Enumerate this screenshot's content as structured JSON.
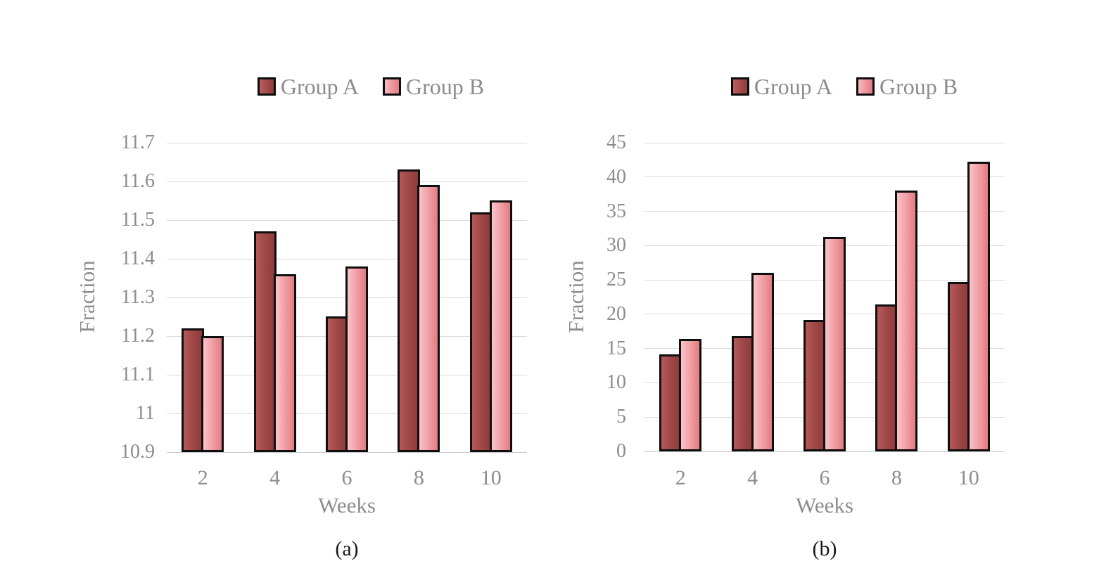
{
  "figure": {
    "background": "#ffffff",
    "legend_labels": [
      "Group A",
      "Group B"
    ],
    "colors": {
      "group_a_fill_light": "#b35959",
      "group_a_fill_dark": "#8f3b3b",
      "group_b_fill_light": "#f8c4c8",
      "group_b_fill_dark": "#e57b82",
      "bar_border": "#0f0f0f",
      "axis_text": "#8c8c8c",
      "gridline": "#dadada",
      "caption_text": "#1a1a1a"
    }
  },
  "chart_data": [
    {
      "id": "a",
      "type": "bar",
      "caption": "(a)",
      "xlabel": "Weeks",
      "ylabel": "Fraction",
      "categories": [
        "2",
        "4",
        "6",
        "8",
        "10"
      ],
      "series": [
        {
          "name": "Group A",
          "values": [
            11.22,
            11.47,
            11.25,
            11.63,
            11.52
          ]
        },
        {
          "name": "Group B",
          "values": [
            11.2,
            11.36,
            11.38,
            11.59,
            11.55
          ]
        }
      ],
      "ylim": [
        10.9,
        11.7
      ],
      "ytick_step": 0.1,
      "ytick_labels": [
        "10.9",
        "11",
        "11.1",
        "11.2",
        "11.3",
        "11.4",
        "11.5",
        "11.6",
        "11.7"
      ],
      "grid": true,
      "legend_position": "top"
    },
    {
      "id": "b",
      "type": "bar",
      "caption": "(b)",
      "xlabel": "Weeks",
      "ylabel": "Fraction",
      "categories": [
        "2",
        "4",
        "6",
        "8",
        "10"
      ],
      "series": [
        {
          "name": "Group A",
          "values": [
            14.1,
            16.8,
            19.2,
            21.4,
            24.7
          ]
        },
        {
          "name": "Group B",
          "values": [
            16.4,
            26.0,
            31.3,
            38.0,
            42.2
          ]
        }
      ],
      "ylim": [
        0,
        45
      ],
      "ytick_step": 5,
      "ytick_labels": [
        "0",
        "5",
        "10",
        "15",
        "20",
        "25",
        "30",
        "35",
        "40",
        "45"
      ],
      "grid": true,
      "legend_position": "top"
    }
  ]
}
